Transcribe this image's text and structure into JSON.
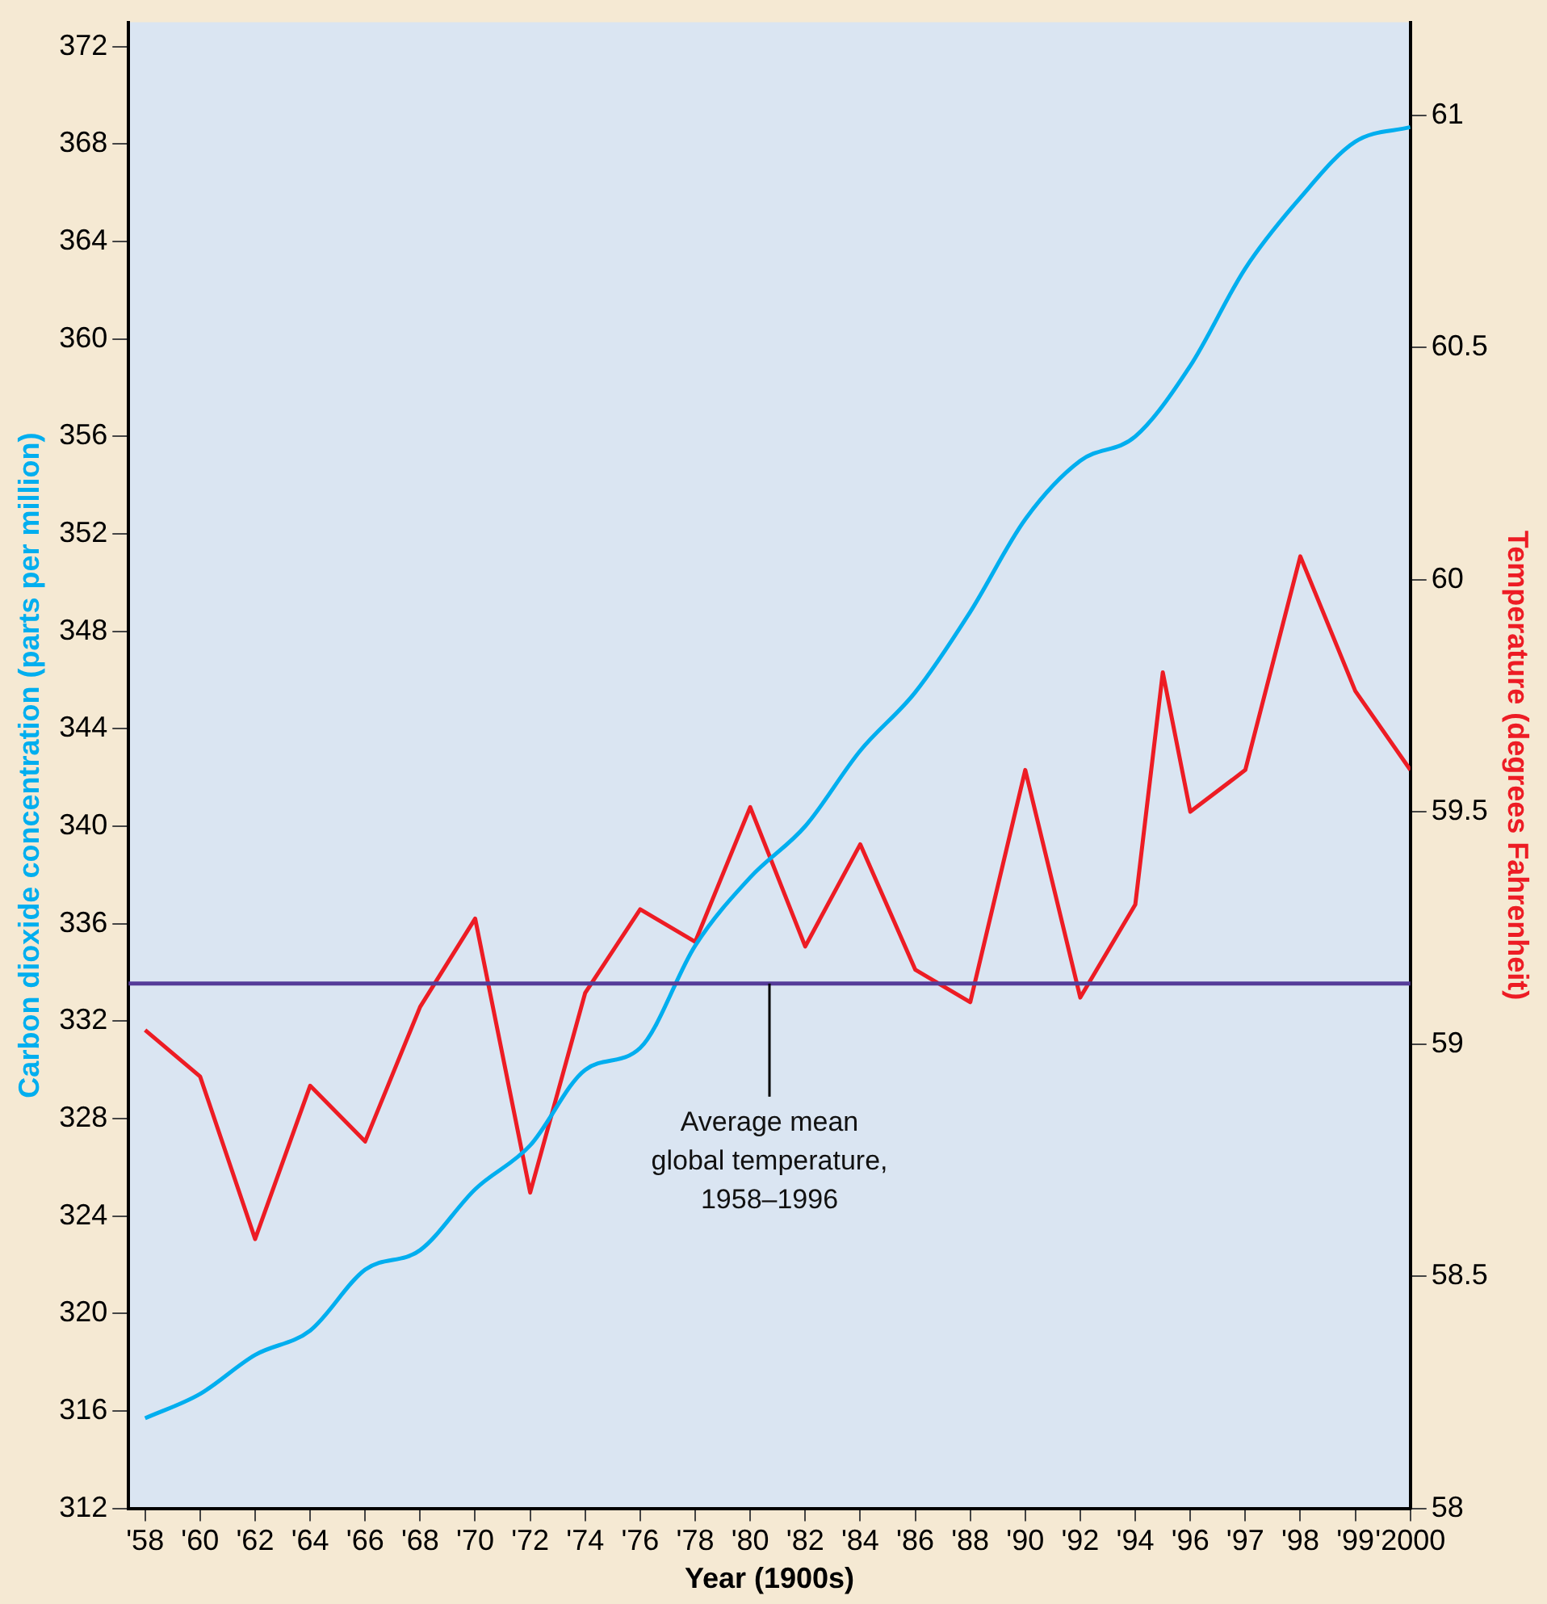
{
  "chart_data": {
    "type": "line",
    "xlabel": "Year (1900s)",
    "ylabel": "Carbon dioxide concentration (parts per million)",
    "y2label": "Temperature (degrees Fahrenheit)",
    "categories": [
      "'58",
      null,
      "'60",
      null,
      "'62",
      null,
      "'64",
      null,
      "'66",
      null,
      "'68",
      null,
      "'70",
      null,
      "'72",
      null,
      "'74",
      null,
      "'76",
      null,
      "'78",
      null,
      "'80",
      null,
      "'82",
      null,
      "'84",
      null,
      "'86",
      null,
      "'88",
      null,
      "'90",
      null,
      "'92",
      null,
      "'94",
      null,
      "'96",
      null,
      "'97",
      null,
      "'98",
      null,
      "'99",
      null,
      "'2000"
    ],
    "series": [
      {
        "color": "#00aeef",
        "values": [
          315.7,
          null,
          316.7,
          null,
          318.3,
          null,
          319.3,
          null,
          321.8,
          null,
          322.6,
          null,
          325.1,
          null,
          326.9,
          null,
          330.0,
          null,
          330.9,
          null,
          335.1,
          null,
          337.9,
          null,
          340.0,
          null,
          343.1,
          null,
          345.5,
          null,
          348.8,
          null,
          352.6,
          null,
          355.0,
          null,
          356.0,
          null,
          358.9,
          null,
          362.9,
          null,
          365.8,
          null,
          368.1,
          null,
          368.7
        ]
      },
      {
        "color": "#ed1c24",
        "axis": "y2",
        "values": [
          59.03,
          null,
          58.93,
          null,
          58.58,
          null,
          58.91,
          null,
          58.79,
          null,
          59.08,
          null,
          59.27,
          null,
          58.68,
          null,
          59.11,
          null,
          59.29,
          null,
          59.22,
          null,
          59.51,
          null,
          59.21,
          null,
          59.43,
          null,
          59.16,
          null,
          59.09,
          null,
          59.59,
          null,
          59.1,
          null,
          59.3,
          59.8,
          59.5,
          null,
          59.59,
          null,
          60.05,
          null,
          59.76,
          null,
          59.59
        ]
      }
    ],
    "ylim": [
      312,
      373
    ],
    "yticks": [
      312,
      316,
      320,
      324,
      328,
      332,
      336,
      340,
      344,
      348,
      352,
      356,
      360,
      364,
      368,
      372
    ],
    "y2lim": [
      58,
      61.2
    ],
    "y2ticks": [
      58,
      58.5,
      59,
      59.5,
      60,
      60.5,
      61
    ],
    "ref_lines": [
      {
        "axis": "y2",
        "value": 59.13,
        "label": "Average mean\nglobal temperature,\n1958–1996",
        "color": "#553c99"
      }
    ],
    "marker": "none",
    "legend": false
  }
}
